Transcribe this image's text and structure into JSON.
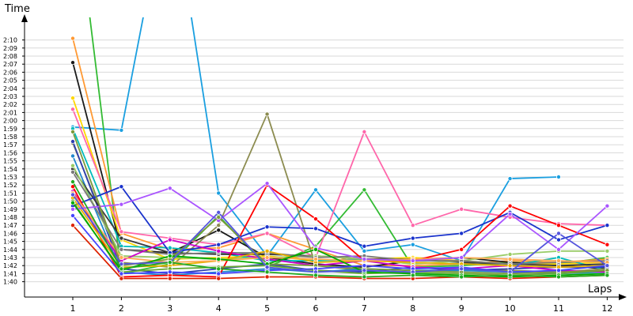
{
  "chart_data": {
    "type": "line",
    "ylabel": "Time",
    "xlabel": "Laps",
    "x": [
      1,
      2,
      3,
      4,
      5,
      6,
      7,
      8,
      9,
      10,
      11,
      12
    ],
    "x_ticks": [
      "1",
      "2",
      "3",
      "4",
      "5",
      "6",
      "7",
      "8",
      "9",
      "10",
      "11",
      "12"
    ],
    "y_ticks": [
      "1:40",
      "1:41",
      "1:42",
      "1:43",
      "1:44",
      "1:45",
      "1:46",
      "1:47",
      "1:48",
      "1:49",
      "1:50",
      "1:51",
      "1:52",
      "1:53",
      "1:54",
      "1:55",
      "1:56",
      "1:57",
      "1:58",
      "1:59",
      "2:00",
      "2:01",
      "2:02",
      "2:03",
      "2:04",
      "2:05",
      "2:06",
      "2:07",
      "2:08",
      "2:09",
      "2:10"
    ],
    "ylim": [
      99.5,
      132
    ],
    "grid": true,
    "unit": "seconds",
    "series": [
      {
        "color": "#1a9fe0",
        "values": [
          119.2,
          118.8,
          150,
          111.0,
          103.2,
          111.4,
          103.8,
          104.6,
          102.6,
          112.8,
          113.0,
          null
        ]
      },
      {
        "color": "#33bb33",
        "values": [
          150,
          101.0,
          102.2,
          108.2,
          101.8,
          104.4,
          111.4,
          101.8,
          102.0,
          102.4,
          102.2,
          103.0
        ]
      },
      {
        "color": "#ff9933",
        "values": [
          130.2,
          106.0,
          104.0,
          104.2,
          106.0,
          104.0,
          102.0,
          102.0,
          102.2,
          102.6,
          102.4,
          102.8
        ]
      },
      {
        "color": "#1a1a1a",
        "values": [
          127.2,
          104.0,
          103.6,
          106.4,
          103.0,
          102.2,
          101.8,
          102.6,
          103.0,
          102.4,
          102.0,
          101.6
        ]
      },
      {
        "color": "#ffd700",
        "values": [
          122.8,
          105.2,
          102.8,
          103.0,
          103.2,
          102.6,
          102.8,
          103.0,
          102.6,
          102.2,
          102.2,
          102.4
        ]
      },
      {
        "color": "#ff66aa",
        "values": [
          121.4,
          106.2,
          105.4,
          104.6,
          106.0,
          103.0,
          118.6,
          107.0,
          109.0,
          108.0,
          107.2,
          107.0
        ]
      },
      {
        "color": "#00bcbc",
        "values": [
          119.0,
          104.4,
          104.2,
          103.6,
          102.6,
          102.6,
          102.8,
          102.4,
          102.2,
          102.0,
          103.0,
          101.4
        ]
      },
      {
        "color": "#8c8c50",
        "values": [
          117.2,
          102.4,
          101.8,
          107.0,
          120.8,
          102.0,
          101.4,
          101.2,
          101.6,
          101.4,
          101.2,
          101.6
        ]
      },
      {
        "color": "#2e3fb0",
        "values": [
          117.4,
          101.6,
          101.0,
          101.6,
          102.2,
          101.4,
          101.2,
          101.8,
          101.4,
          101.6,
          101.8,
          101.8
        ]
      },
      {
        "color": "#2288cc",
        "values": [
          115.6,
          101.2,
          100.8,
          101.2,
          101.6,
          101.2,
          101.6,
          101.4,
          101.4,
          101.2,
          101.0,
          101.2
        ]
      },
      {
        "color": "#3a3a3a",
        "values": [
          114.0,
          105.4,
          103.6,
          103.4,
          103.4,
          103.2,
          102.8,
          102.8,
          102.4,
          102.2,
          102.0,
          102.2
        ]
      },
      {
        "color": "#99cc66",
        "values": [
          114.4,
          103.2,
          103.0,
          102.8,
          103.0,
          103.2,
          102.8,
          102.2,
          102.6,
          103.4,
          103.8,
          103.8
        ]
      },
      {
        "color": "#7a7a7a",
        "values": [
          113.6,
          104.0,
          103.4,
          103.6,
          103.6,
          103.0,
          103.2,
          102.6,
          102.6,
          102.2,
          102.4,
          102.6
        ]
      },
      {
        "color": "#1a33cc",
        "values": [
          109.4,
          111.8,
          103.6,
          104.6,
          106.8,
          106.6,
          104.4,
          105.4,
          106.0,
          108.6,
          105.2,
          107.0
        ]
      },
      {
        "color": "#cc00cc",
        "values": [
          111.2,
          102.6,
          105.2,
          103.8,
          102.8,
          102.0,
          102.6,
          101.8,
          101.6,
          102.0,
          101.4,
          101.2
        ]
      },
      {
        "color": "#ff0000",
        "values": [
          111.8,
          100.6,
          100.8,
          100.6,
          112.0,
          107.8,
          102.6,
          102.6,
          104.0,
          109.4,
          107.0,
          104.6
        ]
      },
      {
        "color": "#e8b000",
        "values": [
          110.4,
          101.8,
          102.0,
          102.6,
          103.8,
          102.4,
          102.6,
          102.4,
          102.2,
          102.0,
          101.8,
          102.0
        ]
      },
      {
        "color": "#66aa33",
        "values": [
          110.0,
          101.2,
          101.6,
          101.8,
          102.0,
          101.4,
          101.0,
          101.2,
          101.0,
          100.8,
          101.0,
          101.4
        ]
      },
      {
        "color": "#dd2200",
        "values": [
          107.0,
          100.4,
          100.4,
          100.4,
          100.6,
          100.6,
          100.4,
          100.4,
          100.6,
          100.4,
          100.6,
          100.8
        ]
      },
      {
        "color": "#ffaa55",
        "values": [
          111.0,
          103.0,
          102.4,
          102.6,
          103.0,
          102.8,
          102.6,
          102.8,
          103.0,
          102.8,
          102.6,
          102.4
        ]
      },
      {
        "color": "#aa55ff",
        "values": [
          109.0,
          109.6,
          111.6,
          107.6,
          112.2,
          104.2,
          102.8,
          102.6,
          103.0,
          108.4,
          104.0,
          109.4
        ]
      },
      {
        "color": "#7a9a3a",
        "values": [
          118.6,
          102.0,
          102.8,
          108.0,
          102.2,
          102.0,
          101.6,
          101.4,
          101.2,
          101.0,
          101.2,
          101.4
        ]
      },
      {
        "color": "#00aa00",
        "values": [
          109.8,
          101.4,
          103.2,
          102.8,
          102.2,
          104.0,
          101.2,
          101.0,
          100.8,
          100.6,
          100.8,
          101.0
        ]
      },
      {
        "color": "#4444ff",
        "values": [
          108.2,
          101.0,
          101.2,
          101.0,
          101.4,
          101.6,
          102.0,
          101.6,
          101.8,
          101.2,
          101.4,
          102.0
        ]
      },
      {
        "color": "#5555dd",
        "values": [
          110.8,
          102.2,
          102.4,
          108.6,
          101.8,
          101.2,
          101.4,
          101.2,
          101.6,
          101.2,
          106.0,
          102.0
        ]
      },
      {
        "color": "#22aa22",
        "values": [
          112.4,
          101.6,
          102.4,
          101.6,
          101.2,
          100.8,
          100.6,
          100.8,
          100.6,
          100.8,
          100.6,
          100.8
        ]
      }
    ]
  }
}
